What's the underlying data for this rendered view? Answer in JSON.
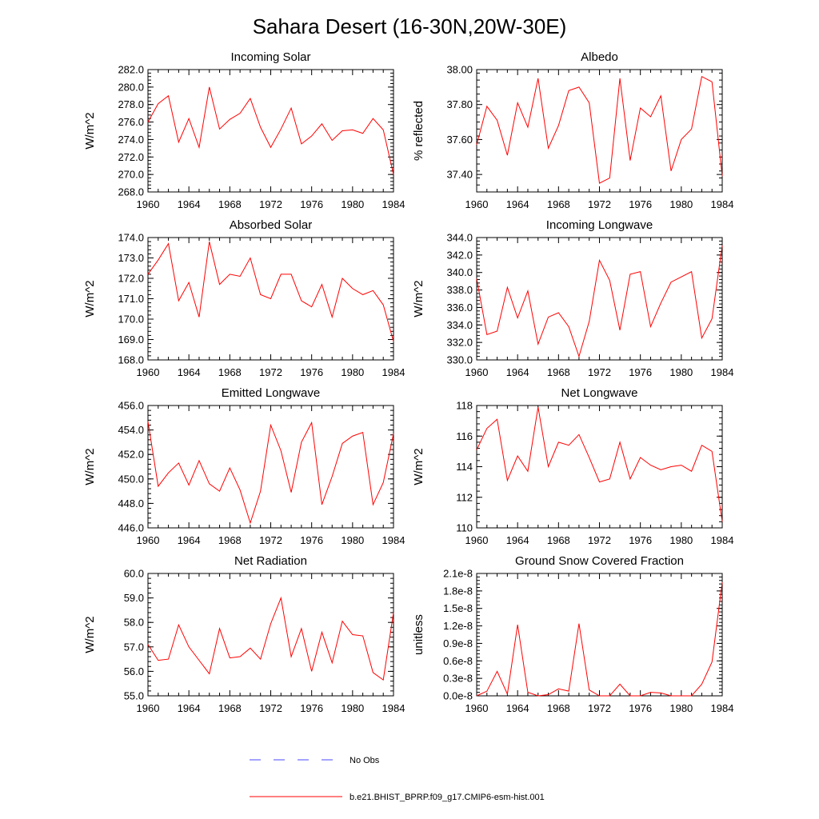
{
  "figure": {
    "title": "Sahara Desert (16-30N,20W-30E)",
    "legend": [
      {
        "label": "No Obs",
        "color": "#0000ff",
        "style": "dashed"
      },
      {
        "label": "b.e21.BHIST_BPRP.f09_g17.CMIP6-esm-hist.001",
        "color": "#ff0000",
        "style": "solid"
      }
    ]
  },
  "chart_data": [
    {
      "type": "line",
      "title": "Incoming Solar",
      "ylabel": "W/m^2",
      "xlabel": "",
      "xlim": [
        1960,
        1984
      ],
      "ylim": [
        268,
        282
      ],
      "xticks": [
        "1960",
        "1964",
        "1968",
        "1972",
        "1976",
        "1980",
        "1984"
      ],
      "yticks": [
        "268.0",
        "270.0",
        "272.0",
        "274.0",
        "276.0",
        "278.0",
        "280.0",
        "282.0"
      ],
      "x": [
        1960,
        1961,
        1962,
        1963,
        1964,
        1965,
        1966,
        1967,
        1968,
        1969,
        1970,
        1971,
        1972,
        1973,
        1974,
        1975,
        1976,
        1977,
        1978,
        1979,
        1980,
        1981,
        1982,
        1983,
        1984
      ],
      "series": [
        {
          "color": "#ff0000",
          "values": [
            276.0,
            278.1,
            279.0,
            273.7,
            276.4,
            273.1,
            280.0,
            275.2,
            276.3,
            277.0,
            278.7,
            275.4,
            273.1,
            275.2,
            277.6,
            273.5,
            274.4,
            275.8,
            273.9,
            275.0,
            275.1,
            274.7,
            276.4,
            275.1,
            270.0
          ]
        }
      ]
    },
    {
      "type": "line",
      "title": "Albedo",
      "ylabel": "% reflected",
      "xlabel": "",
      "xlim": [
        1960,
        1984
      ],
      "ylim": [
        37.3,
        38.0
      ],
      "xticks": [
        "1960",
        "1964",
        "1968",
        "1972",
        "1976",
        "1980",
        "1984"
      ],
      "yticks": [
        "37.40",
        "37.60",
        "37.80",
        "38.00"
      ],
      "yticks_values": [
        37.4,
        37.6,
        37.8,
        38.0
      ],
      "x": [
        1960,
        1961,
        1962,
        1963,
        1964,
        1965,
        1966,
        1967,
        1968,
        1969,
        1970,
        1971,
        1972,
        1973,
        1974,
        1975,
        1976,
        1977,
        1978,
        1979,
        1980,
        1981,
        1982,
        1983,
        1984
      ],
      "series": [
        {
          "color": "#ff0000",
          "values": [
            37.57,
            37.79,
            37.71,
            37.51,
            37.81,
            37.67,
            37.95,
            37.55,
            37.68,
            37.88,
            37.9,
            37.81,
            37.35,
            37.38,
            37.95,
            37.48,
            37.78,
            37.73,
            37.85,
            37.42,
            37.6,
            37.66,
            37.96,
            37.93,
            37.39
          ]
        }
      ]
    },
    {
      "type": "line",
      "title": "Absorbed Solar",
      "ylabel": "W/m^2",
      "xlabel": "",
      "xlim": [
        1960,
        1984
      ],
      "ylim": [
        168,
        174
      ],
      "xticks": [
        "1960",
        "1964",
        "1968",
        "1972",
        "1976",
        "1980",
        "1984"
      ],
      "yticks": [
        "168.0",
        "169.0",
        "170.0",
        "171.0",
        "172.0",
        "173.0",
        "174.0"
      ],
      "x": [
        1960,
        1961,
        1962,
        1963,
        1964,
        1965,
        1966,
        1967,
        1968,
        1969,
        1970,
        1971,
        1972,
        1973,
        1974,
        1975,
        1976,
        1977,
        1978,
        1979,
        1980,
        1981,
        1982,
        1983,
        1984
      ],
      "series": [
        {
          "color": "#ff0000",
          "values": [
            172.2,
            172.9,
            173.7,
            170.9,
            171.8,
            170.1,
            173.8,
            171.7,
            172.2,
            172.1,
            173.0,
            171.2,
            171.0,
            172.2,
            172.2,
            170.9,
            170.6,
            171.7,
            170.1,
            172.0,
            171.5,
            171.2,
            171.4,
            170.7,
            168.9
          ]
        }
      ]
    },
    {
      "type": "line",
      "title": "Incoming Longwave",
      "ylabel": "W/m^2",
      "xlabel": "",
      "xlim": [
        1960,
        1984
      ],
      "ylim": [
        330,
        344
      ],
      "xticks": [
        "1960",
        "1964",
        "1968",
        "1972",
        "1976",
        "1980",
        "1984"
      ],
      "yticks": [
        "330.0",
        "332.0",
        "334.0",
        "336.0",
        "338.0",
        "340.0",
        "342.0",
        "344.0"
      ],
      "x": [
        1960,
        1961,
        1962,
        1963,
        1964,
        1965,
        1966,
        1967,
        1968,
        1969,
        1970,
        1971,
        1972,
        1973,
        1974,
        1975,
        1976,
        1977,
        1978,
        1979,
        1980,
        1981,
        1982,
        1983,
        1984
      ],
      "series": [
        {
          "color": "#ff0000",
          "values": [
            339.3,
            332.9,
            333.3,
            338.3,
            334.8,
            337.9,
            331.8,
            334.9,
            335.4,
            333.8,
            330.4,
            334.4,
            341.4,
            339.1,
            333.4,
            339.8,
            340.1,
            333.8,
            336.5,
            338.9,
            339.5,
            340.1,
            332.5,
            334.7,
            343.1
          ]
        }
      ]
    },
    {
      "type": "line",
      "title": "Emitted Longwave",
      "ylabel": "W/m^2",
      "xlabel": "",
      "xlim": [
        1960,
        1984
      ],
      "ylim": [
        446,
        456
      ],
      "xticks": [
        "1960",
        "1964",
        "1968",
        "1972",
        "1976",
        "1980",
        "1984"
      ],
      "yticks": [
        "446.0",
        "448.0",
        "450.0",
        "452.0",
        "454.0",
        "456.0"
      ],
      "x": [
        1960,
        1961,
        1962,
        1963,
        1964,
        1965,
        1966,
        1967,
        1968,
        1969,
        1970,
        1971,
        1972,
        1973,
        1974,
        1975,
        1976,
        1977,
        1978,
        1979,
        1980,
        1981,
        1982,
        1983,
        1984
      ],
      "series": [
        {
          "color": "#ff0000",
          "values": [
            454.7,
            449.4,
            450.5,
            451.3,
            449.5,
            451.5,
            449.6,
            449.0,
            450.9,
            449.1,
            446.4,
            449.0,
            454.4,
            452.3,
            448.9,
            453.0,
            454.6,
            447.9,
            450.2,
            452.9,
            453.5,
            453.8,
            447.9,
            449.7,
            453.7
          ]
        }
      ]
    },
    {
      "type": "line",
      "title": "Net Longwave",
      "ylabel": "W/m^2",
      "xlabel": "",
      "xlim": [
        1960,
        1984
      ],
      "ylim": [
        110,
        118
      ],
      "xticks": [
        "1960",
        "1964",
        "1968",
        "1972",
        "1976",
        "1980",
        "1984"
      ],
      "yticks": [
        "110",
        "112",
        "114",
        "116",
        "118"
      ],
      "x": [
        1960,
        1961,
        1962,
        1963,
        1964,
        1965,
        1966,
        1967,
        1968,
        1969,
        1970,
        1971,
        1972,
        1973,
        1974,
        1975,
        1976,
        1977,
        1978,
        1979,
        1980,
        1981,
        1982,
        1983,
        1984
      ],
      "series": [
        {
          "color": "#ff0000",
          "values": [
            115.1,
            116.5,
            117.1,
            113.1,
            114.7,
            113.7,
            117.9,
            114.0,
            115.6,
            115.4,
            116.1,
            114.6,
            113.0,
            113.2,
            115.6,
            113.2,
            114.6,
            114.1,
            113.8,
            114.0,
            114.1,
            113.7,
            115.4,
            115.0,
            110.4
          ]
        }
      ]
    },
    {
      "type": "line",
      "title": "Net Radiation",
      "ylabel": "W/m^2",
      "xlabel": "",
      "xlim": [
        1960,
        1984
      ],
      "ylim": [
        55,
        60
      ],
      "xticks": [
        "1960",
        "1964",
        "1968",
        "1972",
        "1976",
        "1980",
        "1984"
      ],
      "yticks": [
        "55.0",
        "56.0",
        "57.0",
        "58.0",
        "59.0",
        "60.0"
      ],
      "x": [
        1960,
        1961,
        1962,
        1963,
        1964,
        1965,
        1966,
        1967,
        1968,
        1969,
        1970,
        1971,
        1972,
        1973,
        1974,
        1975,
        1976,
        1977,
        1978,
        1979,
        1980,
        1981,
        1982,
        1983,
        1984
      ],
      "series": [
        {
          "color": "#ff0000",
          "values": [
            57.1,
            56.45,
            56.5,
            57.9,
            57.0,
            56.45,
            55.9,
            57.75,
            56.55,
            56.6,
            56.95,
            56.5,
            57.95,
            59.0,
            56.6,
            57.75,
            56.0,
            57.6,
            56.35,
            58.05,
            57.5,
            57.45,
            55.95,
            55.65,
            58.4
          ]
        }
      ]
    },
    {
      "type": "line",
      "title": "Ground Snow Covered Fraction",
      "ylabel": "unitless",
      "xlabel": "",
      "xlim": [
        1960,
        1984
      ],
      "ylim": [
        0,
        2.1e-08
      ],
      "xticks": [
        "1960",
        "1964",
        "1968",
        "1972",
        "1976",
        "1980",
        "1984"
      ],
      "yticks": [
        "0.0e-8",
        "0.3e-8",
        "0.6e-8",
        "0.9e-8",
        "1.2e-8",
        "1.5e-8",
        "1.8e-8",
        "2.1e-8"
      ],
      "x": [
        1960,
        1961,
        1962,
        1963,
        1964,
        1965,
        1966,
        1967,
        1968,
        1969,
        1970,
        1971,
        1972,
        1973,
        1974,
        1975,
        1976,
        1977,
        1978,
        1979,
        1980,
        1981,
        1982,
        1983,
        1984
      ],
      "series": [
        {
          "color": "#ff0000",
          "values": [
            0.0,
            8e-10,
            4.2e-09,
            3e-10,
            1.22e-08,
            6e-10,
            0.0,
            2e-10,
            1.2e-09,
            8e-10,
            1.24e-08,
            1e-09,
            0.0,
            0.0,
            2e-09,
            0.0,
            0.0,
            6e-10,
            5e-10,
            0.0,
            0.0,
            0.0,
            2e-09,
            5.8e-09,
            1.95e-08
          ]
        }
      ]
    }
  ]
}
